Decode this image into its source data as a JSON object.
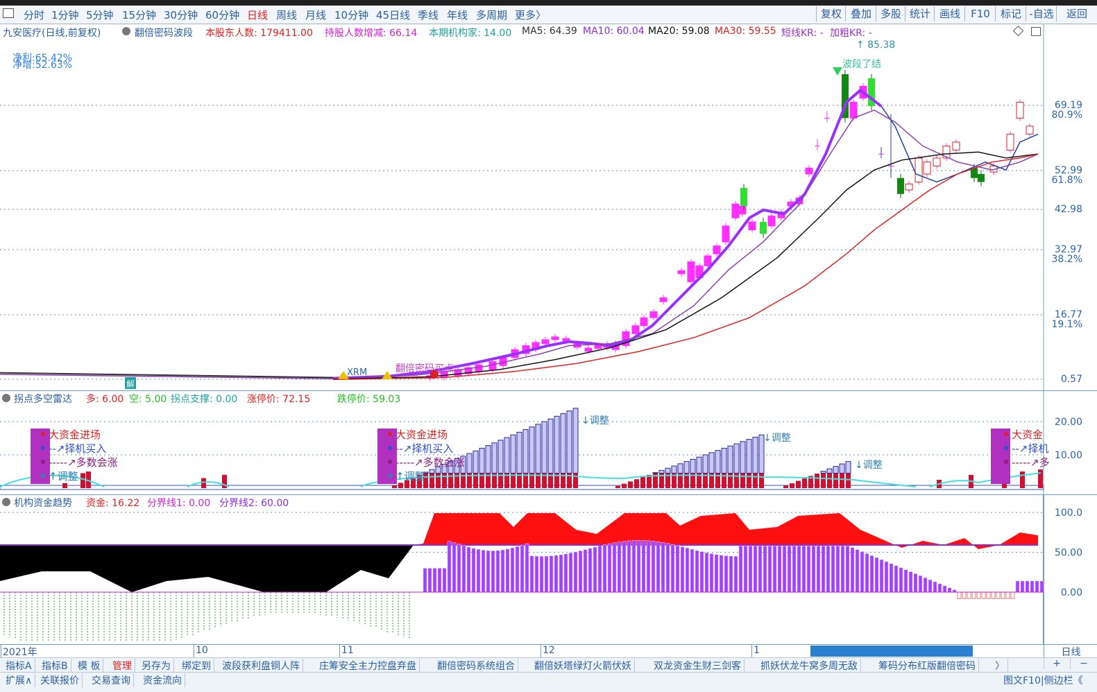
{
  "toolbar": {
    "periods": [
      "分时",
      "1分钟",
      "5分钟",
      "15分钟",
      "30分钟",
      "60分钟",
      "日线",
      "周线",
      "月线",
      "10分钟",
      "45日线",
      "季线",
      "年线",
      "多周期",
      "更多〉"
    ],
    "active_period": "日线",
    "right_buttons": [
      "复权",
      "叠加",
      "多股",
      "统计",
      "画线",
      "F10",
      "标记",
      "-自选",
      "返回"
    ]
  },
  "main_panel": {
    "stock": "九安医疗(日线,前复权)",
    "indicator": "翻倍密码波段",
    "items": [
      {
        "label": "本股东人数: 179411.00",
        "color": "#e02020"
      },
      {
        "label": "持股人数增减: 66.14",
        "color": "#d020d0"
      },
      {
        "label": "本期机构家: 14.00",
        "color": "#20a0a0"
      },
      {
        "label": "MA5: 64.39",
        "color": "#333333"
      },
      {
        "label": "MA10: 60.04",
        "color": "#8a2be2"
      },
      {
        "label": "MA20: 59.08",
        "color": "#111111"
      },
      {
        "label": "MA30: 59.55",
        "color": "#e02020"
      },
      {
        "label": "短线KR: -",
        "color": "#9933cc"
      },
      {
        "label": "加粗KR: -",
        "color": "#9933cc"
      }
    ],
    "net_profit": "净利:65.42%",
    "net_growth": "净增:52.63%",
    "peak_label": "85.38",
    "peak_note": "波段了结",
    "ann_jie": "解",
    "ann_xrm": "XRM",
    "ann_buy": "翻倍密码买点",
    "price_levels": [
      "69.19",
      "52.99",
      "42.98",
      "32.97",
      "16.77",
      "0.57"
    ],
    "pct_levels": [
      "80.9%",
      "61.8%",
      "38.2%",
      "19.1%"
    ]
  },
  "panel2": {
    "title": "拐点多空雷达",
    "items": [
      {
        "label": "多: 6.00",
        "color": "#e02020"
      },
      {
        "label": "空: 5.00",
        "color": "#20c020"
      },
      {
        "label": "拐点支撑: 0.00",
        "color": "#20a0a0"
      },
      {
        "label": "涨停价: 72.15",
        "color": "#e02020"
      },
      {
        "label": "跌停价: 59.03",
        "color": "#20c020"
      }
    ],
    "legend": [
      "大资金进场",
      "择机买入",
      "多数会涨",
      "调整"
    ],
    "legend_short": [
      "大资金",
      "择机",
      "多"
    ],
    "tiaozheng": "↓调整",
    "levels": [
      "20.00",
      "10.00"
    ]
  },
  "panel3": {
    "title": "机构资金趋势",
    "items": [
      {
        "label": "资金: 16.22",
        "color": "#e02020"
      },
      {
        "label": "分界线1: 0.00",
        "color": "#d020d0"
      },
      {
        "label": "分界线2: 60.00",
        "color": "#8a2be2"
      }
    ],
    "levels": [
      "100.0",
      "50.00",
      "0.00"
    ]
  },
  "time_axis": {
    "labels": [
      "2021年",
      "10",
      "11",
      "12",
      "1"
    ],
    "period_label": "日线"
  },
  "tabs_row1": [
    "指标A",
    "指标B",
    "模 板",
    "管理",
    "另存为",
    "绑定到",
    "波段获利盘铜人阵",
    "庄筹安全主力控盘弃盘",
    "翻倍密码系统组合",
    "翻倍妖塔绿灯火箭伏妖",
    "双龙资金生财三剑客",
    "抓妖伏龙牛窝多周无敌",
    "筹码分布红版翻倍密码",
    "〉"
  ],
  "tabs_row2": [
    "扩展∧",
    "关联报价",
    "交易查询",
    "资金流向"
  ],
  "tabs_row2_right": "图文F10|侧边栏《",
  "colors": {
    "up": "#ff30ff",
    "down": "#20b020",
    "ma5": "#9a30ff",
    "ma10": "#8a40b0",
    "ma20": "#111111",
    "ma30": "#e02020"
  }
}
